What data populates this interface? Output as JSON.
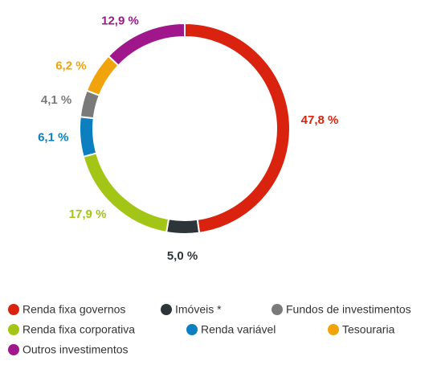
{
  "chart_data": {
    "type": "pie",
    "donut": true,
    "categories": [
      "Renda fixa governos",
      "Imóveis *",
      "Renda fixa corporativa",
      "Renda variável",
      "Fundos de investimentos",
      "Tesouraria",
      "Outros investimentos"
    ],
    "values": [
      47.8,
      5.0,
      17.9,
      6.1,
      4.1,
      6.2,
      12.9
    ],
    "value_labels": [
      "47,8 %",
      "5,0 %",
      "17,9 %",
      "6,1 %",
      "4,1 %",
      "6,2 %",
      "12,9 %"
    ],
    "colors": [
      "#d9230f",
      "#2d3539",
      "#a3c516",
      "#0b7fc0",
      "#7a7a7a",
      "#f0a30a",
      "#a0178b"
    ]
  }
}
